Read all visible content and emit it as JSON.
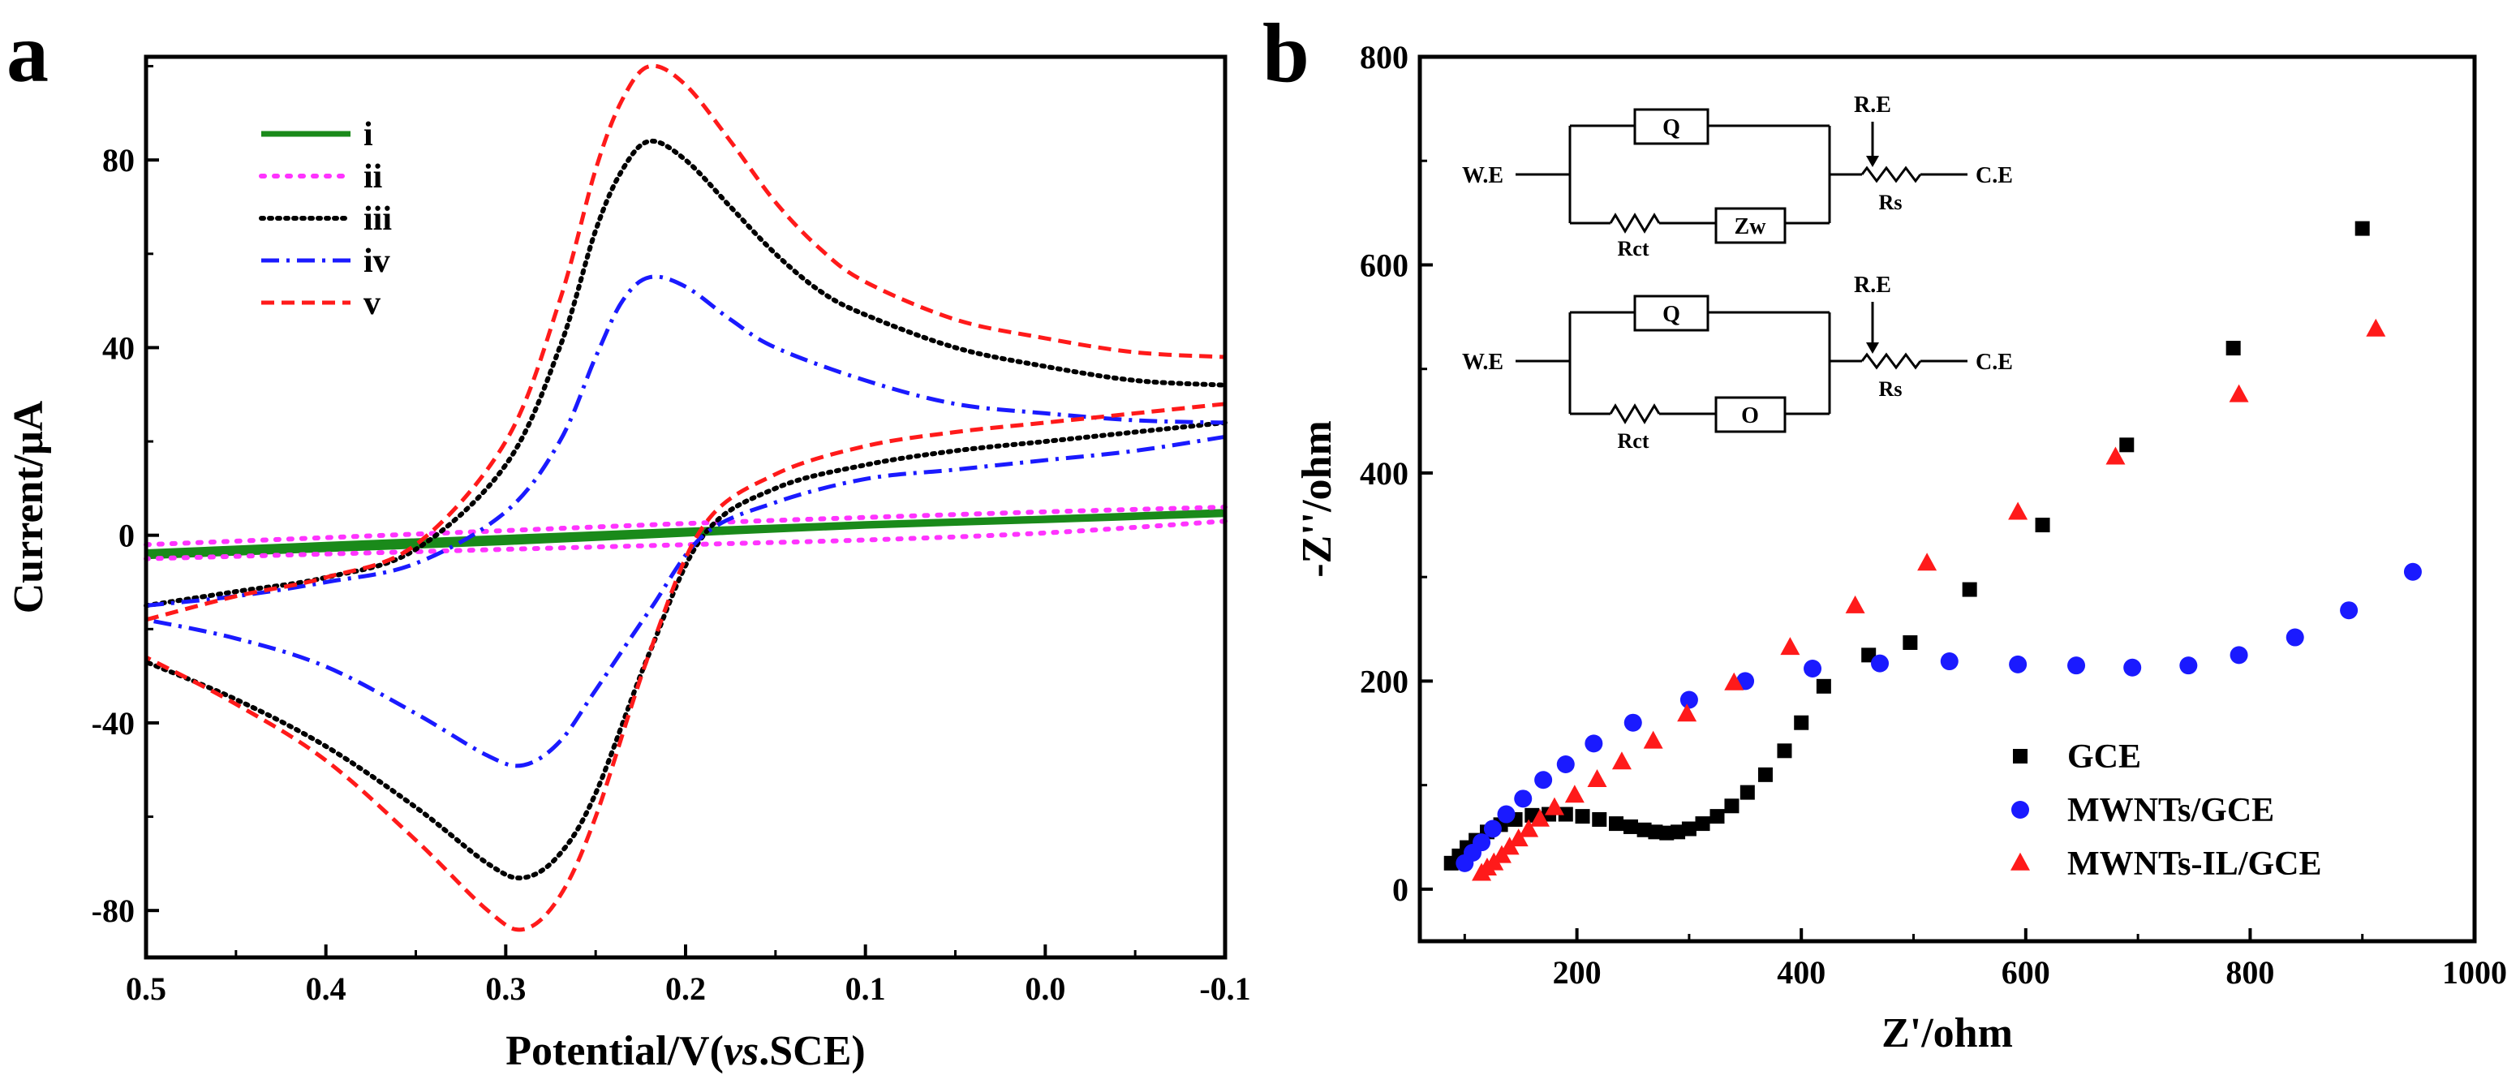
{
  "chart_data": [
    {
      "type": "line",
      "panel_label": "a",
      "title": "",
      "xlabel_prefix": "Potential/V(",
      "xlabel_italic": "vs",
      "xlabel_suffix": ".SCE)",
      "ylabel": "Current/μA",
      "xlim": [
        0.5,
        -0.1
      ],
      "ylim": [
        -90,
        102
      ],
      "xticks": [
        0.5,
        0.4,
        0.3,
        0.2,
        0.1,
        0.0,
        -0.1
      ],
      "xtick_labels": [
        "0.5",
        "0.4",
        "0.3",
        "0.2",
        "0.1",
        "0.0",
        "-0.1"
      ],
      "yticks": [
        -80,
        -40,
        0,
        40,
        80
      ],
      "ytick_labels": [
        "-80",
        "-40",
        "0",
        "40",
        "80"
      ],
      "grid": false,
      "legend_position": "top-left",
      "series": [
        {
          "name": "i",
          "color": "#1a8a1a",
          "dash": "solid",
          "forward": [
            [
              0.5,
              -4.5
            ],
            [
              0.4,
              -3.0
            ],
            [
              0.3,
              -1.5
            ],
            [
              0.2,
              0.3
            ],
            [
              0.1,
              2.0
            ],
            [
              0.0,
              3.2
            ],
            [
              -0.1,
              4.5
            ]
          ],
          "reverse": [
            [
              -0.1,
              5.0
            ],
            [
              0.0,
              3.6
            ],
            [
              0.1,
              2.4
            ],
            [
              0.2,
              1.0
            ],
            [
              0.3,
              -0.5
            ],
            [
              0.4,
              -2.0
            ],
            [
              0.5,
              -3.6
            ]
          ]
        },
        {
          "name": "ii",
          "color": "#ff33ff",
          "dash": "dot",
          "forward": [
            [
              0.5,
              -2.0
            ],
            [
              0.4,
              -0.5
            ],
            [
              0.3,
              1.0
            ],
            [
              0.2,
              2.5
            ],
            [
              0.1,
              3.8
            ],
            [
              0.0,
              5.0
            ],
            [
              -0.1,
              6.0
            ]
          ],
          "reverse": [
            [
              -0.1,
              3.0
            ],
            [
              0.0,
              0.5
            ],
            [
              0.1,
              -1.0
            ],
            [
              0.2,
              -2.0
            ],
            [
              0.3,
              -3.0
            ],
            [
              0.4,
              -4.0
            ],
            [
              0.5,
              -5.0
            ]
          ]
        },
        {
          "name": "iii",
          "color": "#000000",
          "dash": "dense-dot",
          "forward": [
            [
              0.5,
              -15
            ],
            [
              0.45,
              -12
            ],
            [
              0.4,
              -9
            ],
            [
              0.35,
              -3
            ],
            [
              0.3,
              15
            ],
            [
              0.27,
              40
            ],
            [
              0.25,
              65
            ],
            [
              0.235,
              78
            ],
            [
              0.22,
              84
            ],
            [
              0.2,
              80
            ],
            [
              0.175,
              70
            ],
            [
              0.15,
              60
            ],
            [
              0.125,
              52
            ],
            [
              0.1,
              47
            ],
            [
              0.05,
              40
            ],
            [
              0.0,
              36
            ],
            [
              -0.05,
              33
            ],
            [
              -0.1,
              32
            ]
          ],
          "reverse": [
            [
              -0.1,
              24
            ],
            [
              -0.05,
              22
            ],
            [
              0.0,
              20
            ],
            [
              0.05,
              18
            ],
            [
              0.1,
              15
            ],
            [
              0.15,
              10
            ],
            [
              0.19,
              0
            ],
            [
              0.22,
              -25
            ],
            [
              0.25,
              -55
            ],
            [
              0.27,
              -68
            ],
            [
              0.29,
              -73
            ],
            [
              0.31,
              -70
            ],
            [
              0.35,
              -58
            ],
            [
              0.4,
              -45
            ],
            [
              0.45,
              -35
            ],
            [
              0.5,
              -27
            ]
          ]
        },
        {
          "name": "iv",
          "color": "#1a1aff",
          "dash": "dash-dot",
          "forward": [
            [
              0.5,
              -15
            ],
            [
              0.45,
              -13
            ],
            [
              0.4,
              -10
            ],
            [
              0.35,
              -6
            ],
            [
              0.3,
              5
            ],
            [
              0.27,
              20
            ],
            [
              0.25,
              38
            ],
            [
              0.235,
              50
            ],
            [
              0.22,
              55
            ],
            [
              0.2,
              53
            ],
            [
              0.175,
              46
            ],
            [
              0.15,
              40
            ],
            [
              0.1,
              33
            ],
            [
              0.05,
              28
            ],
            [
              0.0,
              26
            ],
            [
              -0.05,
              24.5
            ],
            [
              -0.1,
              24
            ]
          ],
          "reverse": [
            [
              -0.1,
              21
            ],
            [
              -0.05,
              18
            ],
            [
              0.0,
              16
            ],
            [
              0.05,
              14
            ],
            [
              0.1,
              12
            ],
            [
              0.15,
              7
            ],
            [
              0.19,
              0
            ],
            [
              0.22,
              -16
            ],
            [
              0.25,
              -33
            ],
            [
              0.27,
              -44
            ],
            [
              0.29,
              -49
            ],
            [
              0.31,
              -47
            ],
            [
              0.35,
              -38
            ],
            [
              0.4,
              -28
            ],
            [
              0.45,
              -22
            ],
            [
              0.5,
              -18
            ]
          ]
        },
        {
          "name": "v",
          "color": "#ff1a1a",
          "dash": "dash",
          "forward": [
            [
              0.5,
              -18
            ],
            [
              0.45,
              -13
            ],
            [
              0.4,
              -9
            ],
            [
              0.35,
              -2
            ],
            [
              0.3,
              20
            ],
            [
              0.27,
              50
            ],
            [
              0.25,
              78
            ],
            [
              0.235,
              93
            ],
            [
              0.22,
              100
            ],
            [
              0.2,
              96
            ],
            [
              0.175,
              84
            ],
            [
              0.15,
              71
            ],
            [
              0.125,
              61
            ],
            [
              0.1,
              54
            ],
            [
              0.05,
              46
            ],
            [
              0.0,
              42
            ],
            [
              -0.05,
              39
            ],
            [
              -0.1,
              38
            ]
          ],
          "reverse": [
            [
              -0.1,
              28
            ],
            [
              -0.05,
              26
            ],
            [
              0.0,
              24
            ],
            [
              0.05,
              22
            ],
            [
              0.1,
              19
            ],
            [
              0.15,
              13
            ],
            [
              0.19,
              2
            ],
            [
              0.22,
              -25
            ],
            [
              0.25,
              -60
            ],
            [
              0.27,
              -77
            ],
            [
              0.29,
              -84
            ],
            [
              0.31,
              -80
            ],
            [
              0.35,
              -65
            ],
            [
              0.4,
              -48
            ],
            [
              0.45,
              -36
            ],
            [
              0.5,
              -26
            ]
          ]
        }
      ]
    },
    {
      "type": "scatter",
      "panel_label": "b",
      "title": "",
      "xlabel": "Z'/ohm",
      "ylabel": "-Z''/ohm",
      "xlim": [
        60,
        1000
      ],
      "ylim": [
        -50,
        800
      ],
      "xticks": [
        200,
        400,
        600,
        800,
        1000
      ],
      "xtick_labels": [
        "200",
        "400",
        "600",
        "800",
        "1000"
      ],
      "yticks": [
        0,
        200,
        400,
        600,
        800
      ],
      "ytick_labels": [
        "0",
        "200",
        "400",
        "600",
        "800"
      ],
      "grid": false,
      "legend_position": "bottom-right",
      "series": [
        {
          "name": "GCE",
          "color": "#000000",
          "marker": "square",
          "points": [
            [
              88,
              25
            ],
            [
              95,
              32
            ],
            [
              102,
              40
            ],
            [
              110,
              47
            ],
            [
              120,
              55
            ],
            [
              132,
              62
            ],
            [
              145,
              67
            ],
            [
              160,
              71
            ],
            [
              175,
              72
            ],
            [
              190,
              72
            ],
            [
              205,
              70
            ],
            [
              220,
              67
            ],
            [
              235,
              63
            ],
            [
              248,
              60
            ],
            [
              260,
              57
            ],
            [
              270,
              55
            ],
            [
              280,
              54
            ],
            [
              290,
              55
            ],
            [
              300,
              58
            ],
            [
              312,
              63
            ],
            [
              325,
              70
            ],
            [
              338,
              80
            ],
            [
              352,
              93
            ],
            [
              368,
              110
            ],
            [
              385,
              133
            ],
            [
              400,
              160
            ],
            [
              420,
              195
            ],
            [
              460,
              225
            ],
            [
              497,
              237
            ],
            [
              550,
              288
            ],
            [
              615,
              350
            ],
            [
              690,
              427
            ],
            [
              785,
              520
            ],
            [
              900,
              635
            ]
          ]
        },
        {
          "name": "MWNTs/GCE",
          "color": "#1a1aff",
          "marker": "circle",
          "points": [
            [
              100,
              25
            ],
            [
              107,
              35
            ],
            [
              115,
              45
            ],
            [
              125,
              58
            ],
            [
              137,
              72
            ],
            [
              152,
              87
            ],
            [
              170,
              105
            ],
            [
              190,
              120
            ],
            [
              215,
              140
            ],
            [
              250,
              160
            ],
            [
              300,
              182
            ],
            [
              350,
              200
            ],
            [
              410,
              212
            ],
            [
              470,
              217
            ],
            [
              532,
              219
            ],
            [
              593,
              216
            ],
            [
              645,
              215
            ],
            [
              695,
              213
            ],
            [
              745,
              215
            ],
            [
              790,
              225
            ],
            [
              840,
              242
            ],
            [
              888,
              268
            ],
            [
              945,
              305
            ]
          ]
        },
        {
          "name": "MWNTs-IL/GCE",
          "color": "#ff1a1a",
          "marker": "triangle",
          "points": [
            [
              115,
              15
            ],
            [
              120,
              20
            ],
            [
              126,
              25
            ],
            [
              133,
              32
            ],
            [
              140,
              40
            ],
            [
              148,
              48
            ],
            [
              157,
              57
            ],
            [
              167,
              67
            ],
            [
              180,
              78
            ],
            [
              198,
              90
            ],
            [
              218,
              105
            ],
            [
              240,
              122
            ],
            [
              268,
              142
            ],
            [
              298,
              168
            ],
            [
              340,
              198
            ],
            [
              390,
              232
            ],
            [
              448,
              272
            ],
            [
              512,
              313
            ],
            [
              593,
              362
            ],
            [
              680,
              415
            ],
            [
              790,
              475
            ],
            [
              912,
              538
            ]
          ]
        }
      ],
      "inset": {
        "circuits": [
          {
            "we": "W.E",
            "ce": "C.E",
            "q": "Q",
            "rct": "Rct",
            "element": "Zw",
            "re": "R.E",
            "rs": "Rs"
          },
          {
            "we": "W.E",
            "ce": "C.E",
            "q": "Q",
            "rct": "Rct",
            "element": "O",
            "re": "R.E",
            "rs": "Rs"
          }
        ]
      }
    }
  ]
}
